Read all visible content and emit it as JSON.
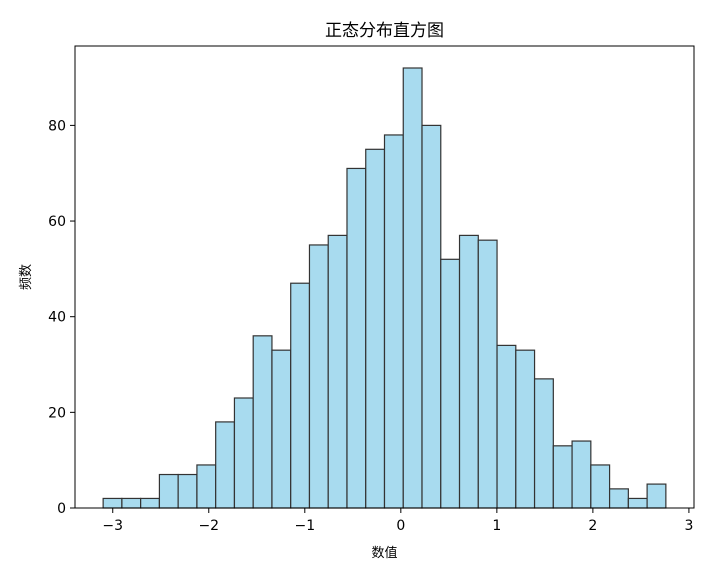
{
  "chart_data": {
    "type": "bar",
    "title": "正态分布直方图",
    "xlabel": "数值",
    "ylabel": "频数",
    "bin_start": -3.1,
    "bin_end": 2.76,
    "counts": [
      2,
      2,
      2,
      7,
      7,
      9,
      18,
      23,
      36,
      33,
      47,
      55,
      57,
      71,
      75,
      78,
      92,
      80,
      52,
      57,
      56,
      34,
      33,
      27,
      13,
      14,
      9,
      4,
      2,
      5
    ],
    "xlim": [
      -3.393,
      3.053
    ],
    "ylim": [
      0,
      96.6
    ],
    "xticks": [
      -3,
      -2,
      -1,
      0,
      1,
      2,
      3
    ],
    "xtick_labels": [
      "−3",
      "−2",
      "−1",
      "0",
      "1",
      "2",
      "3"
    ],
    "yticks": [
      0,
      20,
      40,
      60,
      80
    ],
    "ytick_labels": [
      "0",
      "20",
      "40",
      "60",
      "80"
    ],
    "bar_color": "#a8dbef",
    "edge_color": "#333333",
    "grid": false
  }
}
